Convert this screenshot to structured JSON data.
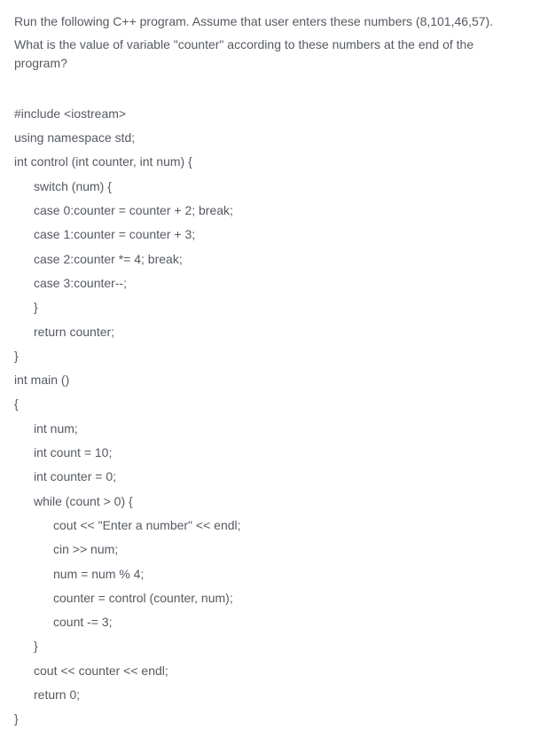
{
  "prompt": {
    "line1": "Run the following C++ program. Assume that user enters these numbers (8,101,46,57).",
    "line2": "What is the value of variable \"counter\" according to these numbers at the end of the program?"
  },
  "code": {
    "l01": "#include <iostream>",
    "l02": "using namespace std;",
    "l03": "int control (int counter, int num) {",
    "l04": "switch (num) {",
    "l05": "case 0:counter = counter + 2; break;",
    "l06": "case 1:counter = counter + 3;",
    "l07": "case 2:counter *= 4; break;",
    "l08": "case 3:counter--;",
    "l09": "}",
    "l10": "return counter;",
    "l11": "}",
    "l12": "int main ()",
    "l13": "{",
    "l14": "int num;",
    "l15": "int count = 10;",
    "l16": "int counter = 0;",
    "l17": "while (count > 0) {",
    "l18": "cout << \"Enter a number\" << endl;",
    "l19": "cin >> num;",
    "l20": "num = num % 4;",
    "l21": "counter = control (counter, num);",
    "l22": "count -= 3;",
    "l23": "}",
    "l24": "cout << counter << endl;",
    "l25": "return 0;",
    "l26": "}"
  }
}
